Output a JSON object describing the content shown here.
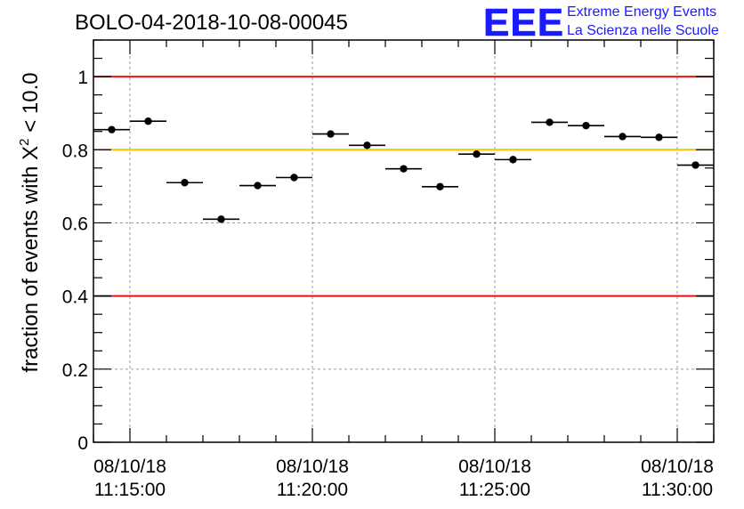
{
  "chart_data": {
    "type": "scatter",
    "title": "BOLO-04-2018-10-08-00045",
    "ylabel": "fraction of events with X",
    "ylabel_sup": "2",
    "ylabel_tail": " < 10.0",
    "xlabel": "",
    "x_unit": "minutes after 11:00:00 on 08/10/18",
    "xlim": [
      14.0,
      31.0
    ],
    "ylim": [
      0,
      1.1
    ],
    "x_ticks": [
      {
        "value": 15,
        "date": "08/10/18",
        "time": "11:15:00"
      },
      {
        "value": 20,
        "date": "08/10/18",
        "time": "11:20:00"
      },
      {
        "value": 25,
        "date": "08/10/18",
        "time": "11:25:00"
      },
      {
        "value": 30,
        "date": "08/10/18",
        "time": "11:30:00"
      }
    ],
    "y_ticks": [
      {
        "value": 0,
        "label": "0"
      },
      {
        "value": 0.2,
        "label": "0.2"
      },
      {
        "value": 0.4,
        "label": "0.4"
      },
      {
        "value": 0.6,
        "label": "0.6"
      },
      {
        "value": 0.8,
        "label": "0.8"
      },
      {
        "value": 1,
        "label": "1"
      }
    ],
    "grid": true,
    "reference_lines": [
      {
        "y": 1.0,
        "color": "#e8140f"
      },
      {
        "y": 0.8,
        "color": "#ffc000"
      },
      {
        "y": 0.4,
        "color": "#e8140f"
      }
    ],
    "bin_width": 1.0,
    "points": [
      {
        "x": 14.5,
        "y": 0.855
      },
      {
        "x": 15.5,
        "y": 0.878
      },
      {
        "x": 16.5,
        "y": 0.71
      },
      {
        "x": 17.5,
        "y": 0.61
      },
      {
        "x": 18.5,
        "y": 0.702
      },
      {
        "x": 19.5,
        "y": 0.724
      },
      {
        "x": 20.5,
        "y": 0.843
      },
      {
        "x": 21.5,
        "y": 0.812
      },
      {
        "x": 22.5,
        "y": 0.748
      },
      {
        "x": 23.5,
        "y": 0.699
      },
      {
        "x": 24.5,
        "y": 0.788
      },
      {
        "x": 25.5,
        "y": 0.773
      },
      {
        "x": 26.5,
        "y": 0.875
      },
      {
        "x": 27.5,
        "y": 0.866
      },
      {
        "x": 28.5,
        "y": 0.836
      },
      {
        "x": 29.5,
        "y": 0.834
      },
      {
        "x": 30.5,
        "y": 0.758
      }
    ]
  },
  "logo": {
    "mark": "EEE",
    "line1": "Extreme Energy Events",
    "line2": "La Scienza nelle Scuole",
    "color": "#1a1aff"
  }
}
